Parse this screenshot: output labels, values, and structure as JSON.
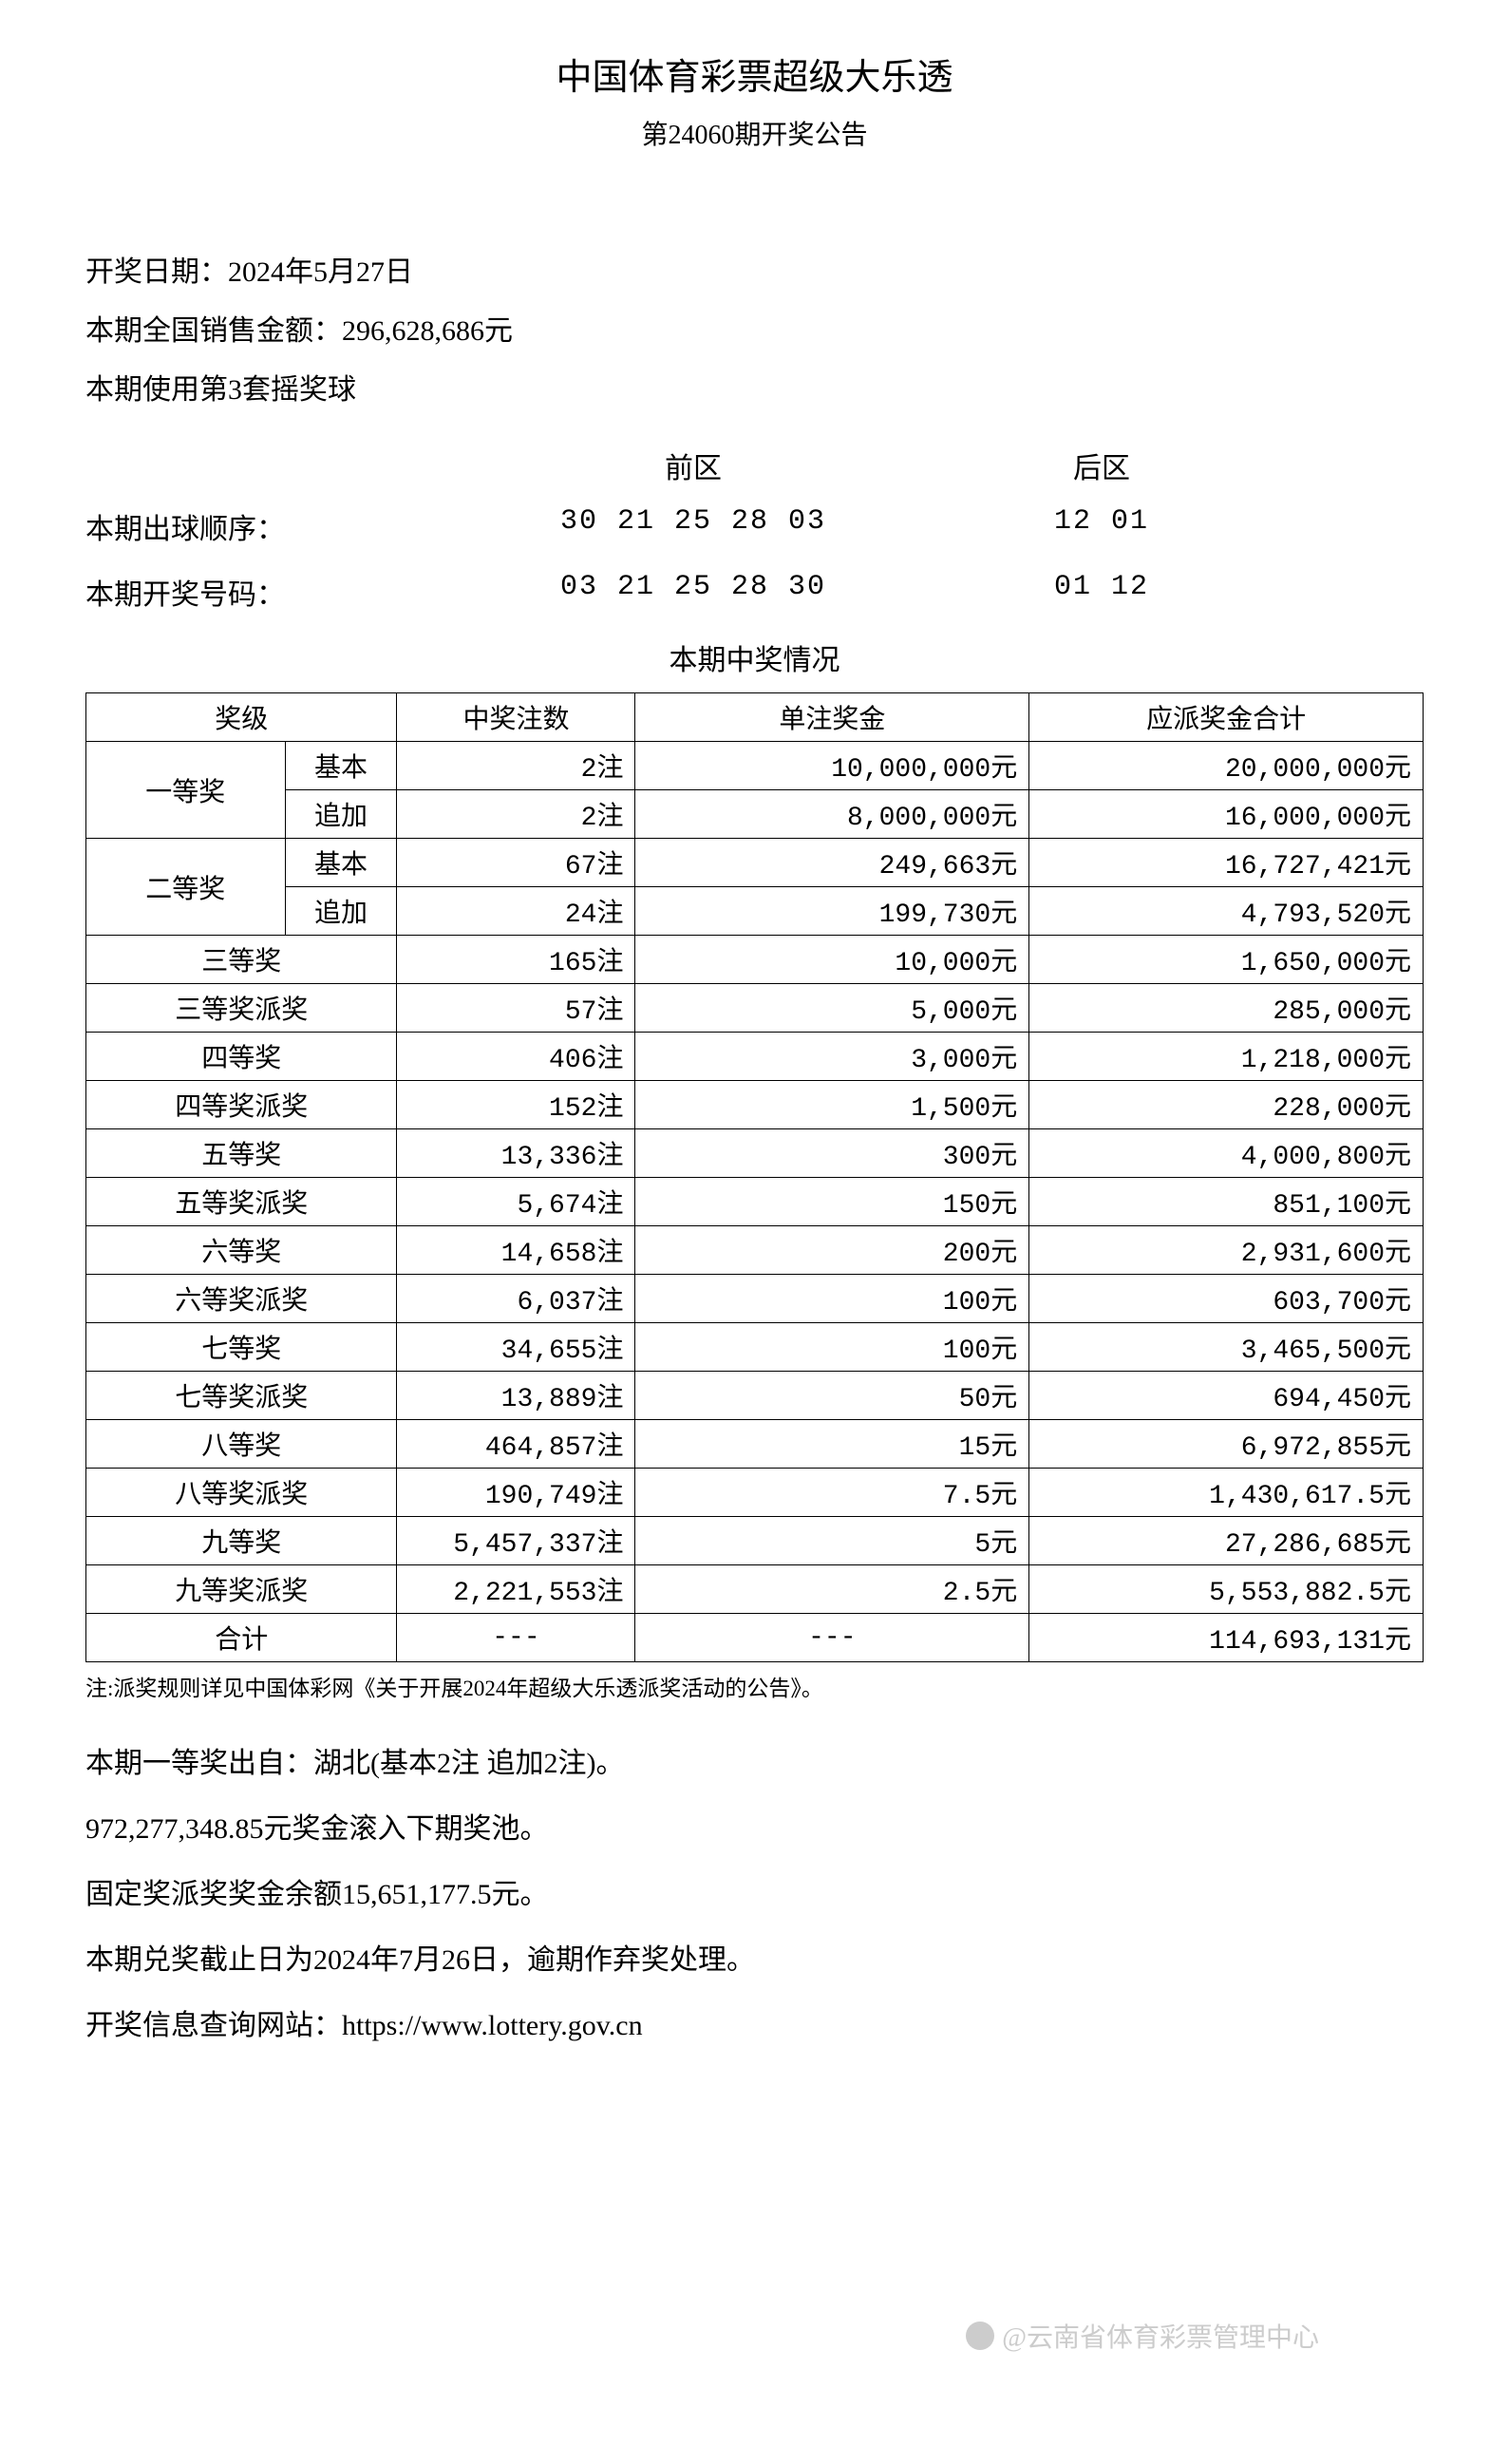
{
  "header": {
    "title": "中国体育彩票超级大乐透",
    "subtitle": "第24060期开奖公告"
  },
  "info": {
    "draw_date": "开奖日期：2024年5月27日",
    "sales_amount": "本期全国销售金额：296,628,686元",
    "ball_set": "本期使用第3套摇奖球"
  },
  "numbers": {
    "front_label": "前区",
    "back_label": "后区",
    "draw_order": {
      "label": "本期出球顺序：",
      "front": "30 21 25 28 03",
      "back": "12 01"
    },
    "winning": {
      "label": "本期开奖号码：",
      "front": "03 21 25 28 30",
      "back": "01 12"
    }
  },
  "prize_section": {
    "title": "本期中奖情况",
    "headers": {
      "level": "奖级",
      "count": "中奖注数",
      "amount": "单注奖金",
      "total": "应派奖金合计"
    },
    "tier1": {
      "label": "一等奖",
      "basic_label": "基本",
      "addon_label": "追加",
      "basic": {
        "count": "2注",
        "amount": "10,000,000元",
        "total": "20,000,000元"
      },
      "addon": {
        "count": "2注",
        "amount": "8,000,000元",
        "total": "16,000,000元"
      }
    },
    "tier2": {
      "label": "二等奖",
      "basic_label": "基本",
      "addon_label": "追加",
      "basic": {
        "count": "67注",
        "amount": "249,663元",
        "total": "16,727,421元"
      },
      "addon": {
        "count": "24注",
        "amount": "199,730元",
        "total": "4,793,520元"
      }
    },
    "rows": [
      {
        "label": "三等奖",
        "count": "165注",
        "amount": "10,000元",
        "total": "1,650,000元"
      },
      {
        "label": "三等奖派奖",
        "count": "57注",
        "amount": "5,000元",
        "total": "285,000元"
      },
      {
        "label": "四等奖",
        "count": "406注",
        "amount": "3,000元",
        "total": "1,218,000元"
      },
      {
        "label": "四等奖派奖",
        "count": "152注",
        "amount": "1,500元",
        "total": "228,000元"
      },
      {
        "label": "五等奖",
        "count": "13,336注",
        "amount": "300元",
        "total": "4,000,800元"
      },
      {
        "label": "五等奖派奖",
        "count": "5,674注",
        "amount": "150元",
        "total": "851,100元"
      },
      {
        "label": "六等奖",
        "count": "14,658注",
        "amount": "200元",
        "total": "2,931,600元"
      },
      {
        "label": "六等奖派奖",
        "count": "6,037注",
        "amount": "100元",
        "total": "603,700元"
      },
      {
        "label": "七等奖",
        "count": "34,655注",
        "amount": "100元",
        "total": "3,465,500元"
      },
      {
        "label": "七等奖派奖",
        "count": "13,889注",
        "amount": "50元",
        "total": "694,450元"
      },
      {
        "label": "八等奖",
        "count": "464,857注",
        "amount": "15元",
        "total": "6,972,855元"
      },
      {
        "label": "八等奖派奖",
        "count": "190,749注",
        "amount": "7.5元",
        "total": "1,430,617.5元"
      },
      {
        "label": "九等奖",
        "count": "5,457,337注",
        "amount": "5元",
        "total": "27,286,685元"
      },
      {
        "label": "九等奖派奖",
        "count": "2,221,553注",
        "amount": "2.5元",
        "total": "5,553,882.5元"
      }
    ],
    "total_row": {
      "label": "合计",
      "count": "---",
      "amount": "---",
      "total": "114,693,131元"
    },
    "note": "注:派奖规则详见中国体彩网《关于开展2024年超级大乐透派奖活动的公告》。"
  },
  "footer": {
    "line1": "本期一等奖出自：湖北(基本2注 追加2注)。",
    "line2": "972,277,348.85元奖金滚入下期奖池。",
    "line3": "固定奖派奖奖金余额15,651,177.5元。",
    "line4": "本期兑奖截止日为2024年7月26日，逾期作弃奖处理。",
    "line5": "开奖信息查询网站：https://www.lottery.gov.cn"
  },
  "watermark": "@云南省体育彩票管理中心"
}
